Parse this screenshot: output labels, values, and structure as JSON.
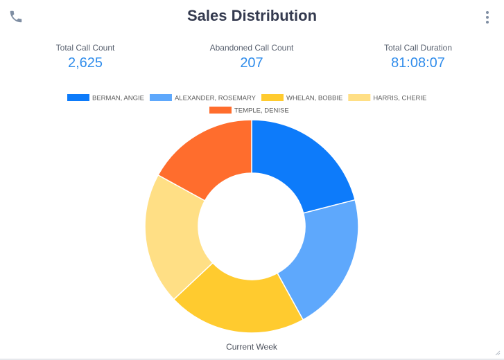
{
  "header": {
    "title": "Sales Distribution",
    "phone_icon": "phone-icon",
    "menu_icon": "more-vertical-icon"
  },
  "stats": [
    {
      "label": "Total Call Count",
      "value": "2,625"
    },
    {
      "label": "Abandoned Call Count",
      "value": "207"
    },
    {
      "label": "Total Call Duration",
      "value": "81:08:07"
    }
  ],
  "chart_data": {
    "type": "pie",
    "donut": true,
    "category": "Current Week",
    "series": [
      {
        "name": "BERMAN, ANGIE",
        "value": 21,
        "color": "#0d7bfa"
      },
      {
        "name": "ALEXANDER, ROSEMARY",
        "value": 21,
        "color": "#5ea8fc"
      },
      {
        "name": "WHELAN, BOBBIE",
        "value": 21,
        "color": "#ffcb2f"
      },
      {
        "name": "HARRIS, CHERIE",
        "value": 20,
        "color": "#ffdf85"
      },
      {
        "name": "TEMPLE, DENISE",
        "value": 17,
        "color": "#ff6d2d"
      }
    ],
    "legend_position": "top"
  }
}
